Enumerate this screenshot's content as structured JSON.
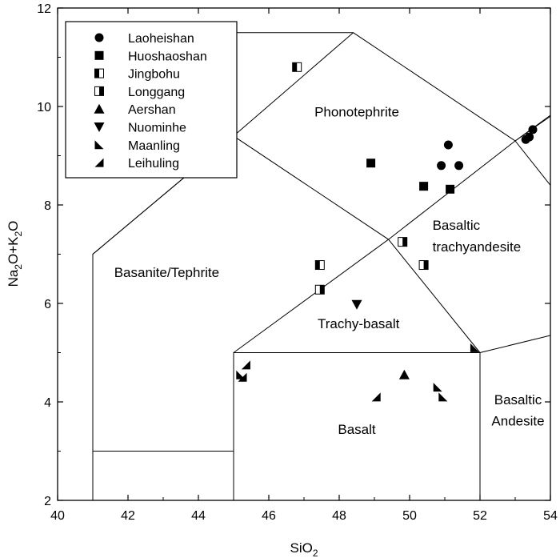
{
  "chart_data": {
    "type": "scatter",
    "title": "",
    "xlabel": {
      "main": "SiO",
      "sub": "2"
    },
    "ylabel": {
      "parts": [
        [
          "Na",
          false
        ],
        [
          "2",
          true
        ],
        [
          "O+K",
          false
        ],
        [
          "2",
          true
        ],
        [
          "O",
          false
        ]
      ]
    },
    "xlim": [
      40,
      54
    ],
    "ylim": [
      2,
      12
    ],
    "x_ticks": [
      40,
      42,
      44,
      46,
      48,
      50,
      52,
      54
    ],
    "y_ticks": [
      2,
      4,
      6,
      8,
      10,
      12
    ],
    "grid": false,
    "legend_position": "top-left",
    "boundaries": [
      [
        [
          41,
          2
        ],
        [
          41,
          3
        ],
        [
          45,
          3
        ],
        [
          45,
          2
        ]
      ],
      [
        [
          45,
          2
        ],
        [
          45,
          5
        ],
        [
          52,
          5
        ],
        [
          52,
          2
        ]
      ],
      [
        [
          41,
          3
        ],
        [
          41,
          7
        ],
        [
          45,
          9.4
        ],
        [
          49.4,
          7.3
        ],
        [
          53,
          9.3
        ],
        [
          57.6,
          11.7
        ]
      ],
      [
        [
          45,
          5
        ],
        [
          49.4,
          7.3
        ],
        [
          52,
          5
        ]
      ],
      [
        [
          45,
          9.4
        ],
        [
          48.4,
          11.5
        ],
        [
          53,
          9.3
        ],
        [
          54,
          8.4
        ]
      ],
      [
        [
          52,
          5
        ],
        [
          54,
          5.35
        ]
      ],
      [
        [
          53,
          9.3
        ],
        [
          54,
          9.8
        ]
      ],
      [
        [
          44.1,
          11.5
        ],
        [
          48.4,
          11.5
        ]
      ],
      [
        [
          41,
          7
        ],
        [
          45,
          9.4
        ]
      ]
    ],
    "field_labels": [
      {
        "text": "Phonotephrite",
        "x": 48.5,
        "y": 9.8,
        "anchor": "middle"
      },
      {
        "text": "Basaltic",
        "x": 50.65,
        "y": 7.5,
        "anchor": "start"
      },
      {
        "text": "trachyandesite",
        "x": 50.65,
        "y": 7.06,
        "anchor": "start"
      },
      {
        "text": "Basanite/Tephrite",
        "x": 43.1,
        "y": 6.54,
        "anchor": "middle"
      },
      {
        "text": "Trachy-basalt",
        "x": 48.55,
        "y": 5.5,
        "anchor": "middle"
      },
      {
        "text": "Basalt",
        "x": 48.5,
        "y": 3.35,
        "anchor": "middle"
      },
      {
        "text": "Basaltic",
        "x": 53.08,
        "y": 3.95,
        "anchor": "middle"
      },
      {
        "text": "Andesite",
        "x": 53.08,
        "y": 3.52,
        "anchor": "middle"
      }
    ],
    "series": [
      {
        "name": "Laoheishan",
        "marker": "circle",
        "points": [
          [
            51.1,
            9.22
          ],
          [
            50.9,
            8.8
          ],
          [
            51.4,
            8.8
          ],
          [
            53.3,
            9.33
          ],
          [
            53.4,
            9.38
          ],
          [
            53.5,
            9.53
          ]
        ]
      },
      {
        "name": "Huoshaoshan",
        "marker": "square",
        "points": [
          [
            48.9,
            8.85
          ],
          [
            50.4,
            8.38
          ],
          [
            51.15,
            8.32
          ]
        ]
      },
      {
        "name": "Jingbohu",
        "marker": "half-square-left",
        "points": [
          [
            46.8,
            10.8
          ],
          [
            47.45,
            6.78
          ]
        ]
      },
      {
        "name": "Longgang",
        "marker": "half-square-right",
        "points": [
          [
            47.45,
            6.28
          ],
          [
            49.8,
            7.25
          ],
          [
            50.4,
            6.78
          ]
        ]
      },
      {
        "name": "Aershan",
        "marker": "triangle-up",
        "points": [
          [
            49.85,
            4.55
          ]
        ]
      },
      {
        "name": "Nuominhe",
        "marker": "triangle-down",
        "points": [
          [
            48.5,
            5.98
          ]
        ]
      },
      {
        "name": "Maanling",
        "marker": "right-triangle-a",
        "points": [
          [
            50.95,
            4.1
          ],
          [
            50.8,
            4.3
          ],
          [
            51.85,
            5.1
          ],
          [
            45.2,
            4.55
          ]
        ]
      },
      {
        "name": "Leihuling",
        "marker": "right-triangle-b",
        "points": [
          [
            49.05,
            4.1
          ],
          [
            45.25,
            4.5
          ],
          [
            45.35,
            4.75
          ]
        ]
      }
    ]
  }
}
